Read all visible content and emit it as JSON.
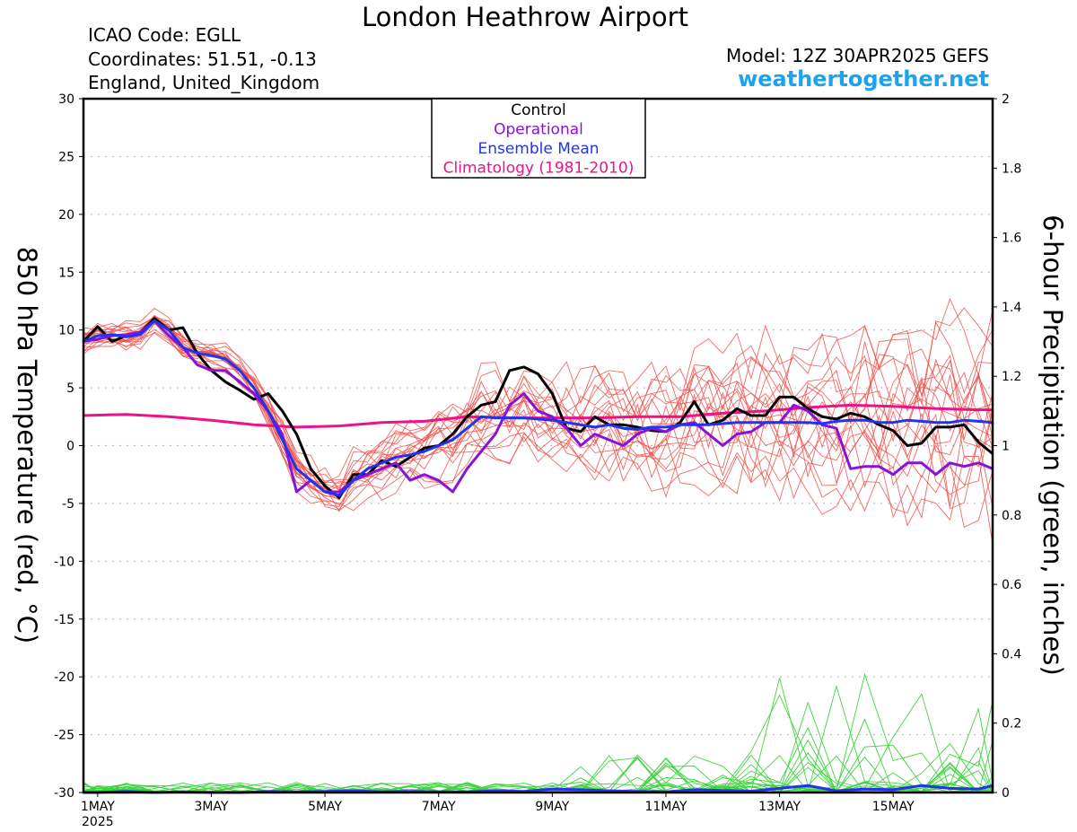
{
  "header": {
    "title": "London Heathrow Airport",
    "icao": "ICAO Code: EGLL",
    "coordinates": "Coordinates: 51.51, -0.13",
    "region": "England, United_Kingdom",
    "model": "Model: 12Z 30APR2025 GEFS",
    "brand": "weathertogether.net"
  },
  "chart_data": {
    "type": "line",
    "title": "London Heathrow Airport",
    "x_unit": "days from 1MAY2025 00Z",
    "xlim": [
      -0.25,
      15.75
    ],
    "x_ticks": [
      {
        "x": 0,
        "label": "1MAY",
        "sub": "2025"
      },
      {
        "x": 2,
        "label": "3MAY"
      },
      {
        "x": 4,
        "label": "5MAY"
      },
      {
        "x": 6,
        "label": "7MAY"
      },
      {
        "x": 8,
        "label": "9MAY"
      },
      {
        "x": 10,
        "label": "11MAY"
      },
      {
        "x": 12,
        "label": "13MAY"
      },
      {
        "x": 14,
        "label": "15MAY"
      }
    ],
    "ylabel_left": "850 hPa Temperature (red, °C)",
    "ylabel_right": "6-hour Precipitation (green, inches)",
    "ylim_left": [
      -30,
      30
    ],
    "y_ticks_left": [
      30,
      25,
      20,
      15,
      10,
      5,
      0,
      -5,
      -10,
      -15,
      -20,
      -25,
      -30
    ],
    "ylim_right": [
      0,
      2
    ],
    "y_ticks_right": [
      "2",
      "1.8",
      "1.6",
      "1.4",
      "1.2",
      "1",
      "0.8",
      "0.6",
      "0.4",
      "0.2",
      "0"
    ],
    "grid": true,
    "legend": {
      "position": "top-center",
      "entries": [
        {
          "label": "Control",
          "color": "#000000"
        },
        {
          "label": "Operational",
          "color": "#8a12d8"
        },
        {
          "label": "Ensemble Mean",
          "color": "#2233ee"
        },
        {
          "label": "Climatology (1981-2010)",
          "color": "#ee1188"
        }
      ]
    },
    "colors": {
      "members_temp": "#f0504a",
      "members_precip": "#3ed43e",
      "control": "#000000",
      "operational": "#8a12d8",
      "mean": "#2233ee",
      "climatology": "#ee1188",
      "grid": "#bbbbbb"
    },
    "series": [
      {
        "name": "Control",
        "role": "control",
        "x": [
          -0.25,
          0,
          0.25,
          0.5,
          0.75,
          1,
          1.25,
          1.5,
          1.75,
          2,
          2.25,
          2.5,
          2.75,
          3,
          3.25,
          3.5,
          3.75,
          4,
          4.25,
          4.5,
          4.75,
          5,
          5.25,
          5.5,
          5.75,
          6,
          6.25,
          6.5,
          6.75,
          7,
          7.25,
          7.5,
          7.75,
          8,
          8.25,
          8.5,
          8.75,
          9,
          9.25,
          9.5,
          9.75,
          10,
          10.25,
          10.5,
          10.75,
          11,
          11.25,
          11.5,
          11.75,
          12,
          12.25,
          12.5,
          12.75,
          13,
          13.25,
          13.5,
          13.75,
          14,
          14.25,
          14.5,
          14.75,
          15,
          15.25,
          15.5,
          15.75
        ],
        "y": [
          9,
          10.3,
          9,
          9.5,
          9.8,
          11,
          10,
          10.2,
          8,
          6.5,
          5.5,
          4.8,
          4,
          4.5,
          3,
          1,
          -2,
          -3.5,
          -4.5,
          -2.5,
          -2.5,
          -1.3,
          -1.8,
          -1,
          -0.2,
          0,
          1,
          2.5,
          3.5,
          3.8,
          6.5,
          6.8,
          6.2,
          4.5,
          1.5,
          1.2,
          2.5,
          1.8,
          1.8,
          1.6,
          1.3,
          1.2,
          2,
          3.8,
          1.8,
          2.2,
          3.2,
          2.6,
          2.6,
          4.2,
          4.2,
          3.2,
          2.5,
          2.3,
          2.8,
          2.5,
          1.8,
          1.3,
          0,
          0.2,
          1.6,
          1.6,
          1.8,
          0.3,
          -0.7
        ]
      },
      {
        "name": "Operational",
        "role": "operational",
        "x": [
          -0.25,
          0,
          0.25,
          0.5,
          0.75,
          1,
          1.25,
          1.5,
          1.75,
          2,
          2.25,
          2.5,
          2.75,
          3,
          3.25,
          3.5,
          3.75,
          4,
          4.25,
          4.5,
          4.75,
          5,
          5.25,
          5.5,
          5.75,
          6,
          6.25,
          6.5,
          6.75,
          7,
          7.25,
          7.5,
          7.75,
          8,
          8.25,
          8.5,
          8.75,
          9,
          9.25,
          9.5,
          9.75,
          10,
          10.25,
          10.5,
          10.75,
          11,
          11.25,
          11.5,
          11.75,
          12,
          12.25,
          12.5,
          12.75,
          13,
          13.25,
          13.5,
          13.75,
          14,
          14.25,
          14.5,
          14.75,
          15,
          15.25,
          15.5,
          15.75
        ],
        "y": [
          9,
          9.2,
          9.5,
          9.6,
          9.8,
          10.8,
          9.5,
          8.5,
          7,
          6.5,
          6.5,
          5.5,
          4.5,
          3,
          1,
          -4,
          -3,
          -4,
          -4,
          -3,
          -2.5,
          -2,
          -1.5,
          -3,
          -2.5,
          -3,
          -4,
          -2,
          -0.5,
          1,
          3.5,
          4.5,
          3,
          2.5,
          1.5,
          0,
          1,
          0.5,
          0,
          1,
          1.5,
          1.2,
          1.8,
          2,
          1,
          0,
          1,
          1.2,
          2,
          2,
          3.5,
          3,
          1.8,
          1.5,
          -2,
          -1.8,
          -1.8,
          -2.5,
          -1.5,
          -1.5,
          -2.5,
          -1.5,
          -1.8,
          -1.5,
          -2
        ]
      },
      {
        "name": "Ensemble Mean",
        "role": "mean",
        "x": [
          -0.25,
          0,
          0.25,
          0.5,
          0.75,
          1,
          1.25,
          1.5,
          1.75,
          2,
          2.25,
          2.5,
          2.75,
          3,
          3.25,
          3.5,
          3.75,
          4,
          4.25,
          4.5,
          4.75,
          5,
          5.25,
          5.5,
          5.75,
          6,
          6.25,
          6.5,
          6.75,
          7,
          7.25,
          7.5,
          7.75,
          8,
          8.25,
          8.5,
          8.75,
          9,
          9.25,
          9.5,
          9.75,
          10,
          10.25,
          10.5,
          10.75,
          11,
          11.25,
          11.5,
          11.75,
          12,
          12.25,
          12.5,
          12.75,
          13,
          13.25,
          13.5,
          13.75,
          14,
          14.25,
          14.5,
          14.75,
          15,
          15.25,
          15.5,
          15.75
        ],
        "y": [
          9,
          9.5,
          9.6,
          9.4,
          9.6,
          10.8,
          10,
          8.5,
          8,
          7.8,
          7.5,
          6.5,
          5,
          3,
          0.5,
          -2,
          -3,
          -4,
          -4.3,
          -3,
          -2,
          -1.5,
          -1,
          -0.8,
          -0.5,
          0,
          0.5,
          1.5,
          2.5,
          2.4,
          2.4,
          2.4,
          2.3,
          2.2,
          2,
          1.8,
          1.6,
          1.8,
          1.5,
          1.4,
          1.6,
          1.6,
          1.8,
          1.8,
          1.8,
          1.9,
          2,
          2,
          2,
          2,
          2,
          2,
          1.9,
          2.1,
          2.2,
          2.2,
          2,
          2,
          2.2,
          2.1,
          2,
          2,
          2.2,
          2.1,
          2
        ]
      },
      {
        "name": "Climatology (1981-2010)",
        "role": "climatology",
        "x": [
          -0.25,
          0.5,
          1.25,
          2,
          2.75,
          3.5,
          4.25,
          5,
          5.75,
          6.5,
          7.25,
          8,
          8.75,
          9.5,
          10.25,
          11,
          11.75,
          12.5,
          13.25,
          14,
          14.75,
          15.5,
          15.75
        ],
        "y": [
          2.6,
          2.7,
          2.5,
          2.2,
          1.8,
          1.6,
          1.7,
          2,
          2.1,
          2.5,
          2.4,
          2.4,
          2.4,
          2.5,
          2.5,
          2.8,
          3,
          3.3,
          3.5,
          3.4,
          3.2,
          3.1,
          3.1
        ]
      }
    ],
    "precip_series": [
      {
        "role": "mean",
        "x": [
          -0.25,
          0,
          0.5,
          1,
          1.5,
          2,
          2.5,
          3,
          3.5,
          4,
          4.5,
          5,
          5.5,
          6,
          6.5,
          7,
          7.5,
          8,
          8.5,
          9,
          9.5,
          10,
          10.5,
          11,
          11.5,
          12,
          12.5,
          13,
          13.5,
          14,
          14.5,
          15,
          15.5,
          15.75
        ],
        "y": [
          0,
          0,
          0.003,
          0,
          0.002,
          0,
          0,
          0.003,
          0.002,
          0.003,
          0.005,
          0.002,
          0.003,
          0.002,
          0.002,
          0.005,
          0.003,
          0.01,
          0.008,
          0.005,
          0.003,
          0.002,
          0.008,
          0.006,
          0.004,
          0.012,
          0.02,
          0.005,
          0.01,
          0.008,
          0.02,
          0.012,
          0.01,
          0.02
        ]
      }
    ]
  }
}
